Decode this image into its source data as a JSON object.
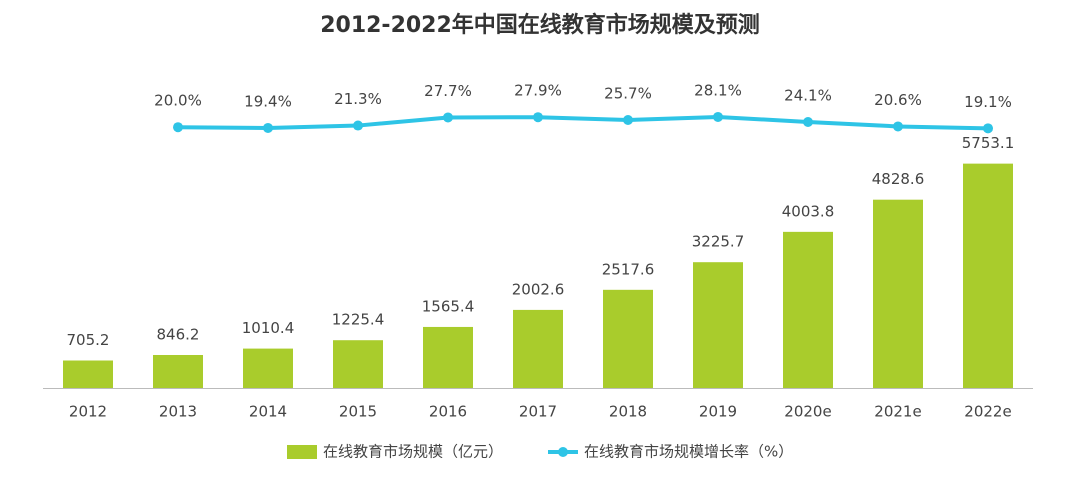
{
  "chart_data": {
    "type": "bar",
    "title": "2012-2022年中国在线教育市场规模及预测",
    "categories": [
      "2012",
      "2013",
      "2014",
      "2015",
      "2016",
      "2017",
      "2018",
      "2019",
      "2020e",
      "2021e",
      "2022e"
    ],
    "ylim": [
      0,
      6000
    ],
    "y2lim": [
      0,
      100
    ],
    "legend": "bottom",
    "series": [
      {
        "name": "在线教育市场规模（亿元）",
        "type": "bar",
        "color": "#a9cc2c",
        "values": [
          705.2,
          846.2,
          1010.4,
          1225.4,
          1565.4,
          2002.6,
          2517.6,
          3225.7,
          4003.8,
          4828.6,
          5753.1
        ]
      },
      {
        "name": "在线教育市场规模增长率（%）",
        "type": "line",
        "axis": "y2",
        "color": "#2ec4e6",
        "values": [
          null,
          20.0,
          19.4,
          21.3,
          27.7,
          27.9,
          25.7,
          28.1,
          24.1,
          20.6,
          19.1
        ],
        "value_labels": [
          null,
          "20.0%",
          "19.4%",
          "21.3%",
          "27.7%",
          "27.9%",
          "25.7%",
          "28.1%",
          "24.1%",
          "20.6%",
          "19.1%"
        ]
      }
    ]
  }
}
